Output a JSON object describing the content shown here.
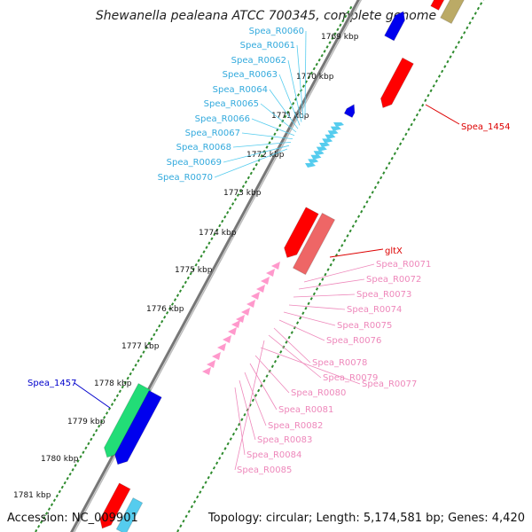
{
  "title": "Shewanella pealeana ATCC 700345, complete genome",
  "footer": {
    "accession": "Accession: NC_009901",
    "summary": "Topology: circular; Length: 5,174,581 bp; Genes: 4,420"
  },
  "colors": {
    "backbone": "#7f7f7f",
    "ticks": "#2e8b2e",
    "cds_forward": "#ff0000",
    "cds_reverse": "#0000ee",
    "rrna": "#55ccee",
    "rrna_label": "#33aadd",
    "trna_pink": "#ff99cc",
    "trna_label": "#ee88bb",
    "green_feature": "#22dd77",
    "tan_feature": "#bbaa66",
    "gltX_light": "#ee6666",
    "blue_label": "#0000cc",
    "red_label": "#dd0000"
  },
  "ruler": [
    {
      "label": "1769 kbp"
    },
    {
      "label": "1770 kbp"
    },
    {
      "label": "1771 kbp"
    },
    {
      "label": "1772 kbp"
    },
    {
      "label": "1773 kbp"
    },
    {
      "label": "1774 kbp"
    },
    {
      "label": "1775 kbp"
    },
    {
      "label": "1776 kbp"
    },
    {
      "label": "1777 kbp"
    },
    {
      "label": "1778 kbp"
    },
    {
      "label": "1779 kbp"
    },
    {
      "label": "1780 kbp"
    },
    {
      "label": "1781 kbp"
    }
  ],
  "rrna_labels": [
    "Spea_R0060",
    "Spea_R0061",
    "Spea_R0062",
    "Spea_R0063",
    "Spea_R0064",
    "Spea_R0065",
    "Spea_R0066",
    "Spea_R0067",
    "Spea_R0068",
    "Spea_R0069",
    "Spea_R0070"
  ],
  "trna_labels": [
    "Spea_R0071",
    "Spea_R0072",
    "Spea_R0073",
    "Spea_R0074",
    "Spea_R0075",
    "Spea_R0076",
    "Spea_R0078",
    "Spea_R0079",
    "Spea_R0077",
    "Spea_R0080",
    "Spea_R0081",
    "Spea_R0082",
    "Spea_R0083",
    "Spea_R0084",
    "Spea_R0085"
  ],
  "gene_labels": {
    "spea_1454": "Spea_1454",
    "gltX": "gltX",
    "spea_1457": "Spea_1457"
  }
}
